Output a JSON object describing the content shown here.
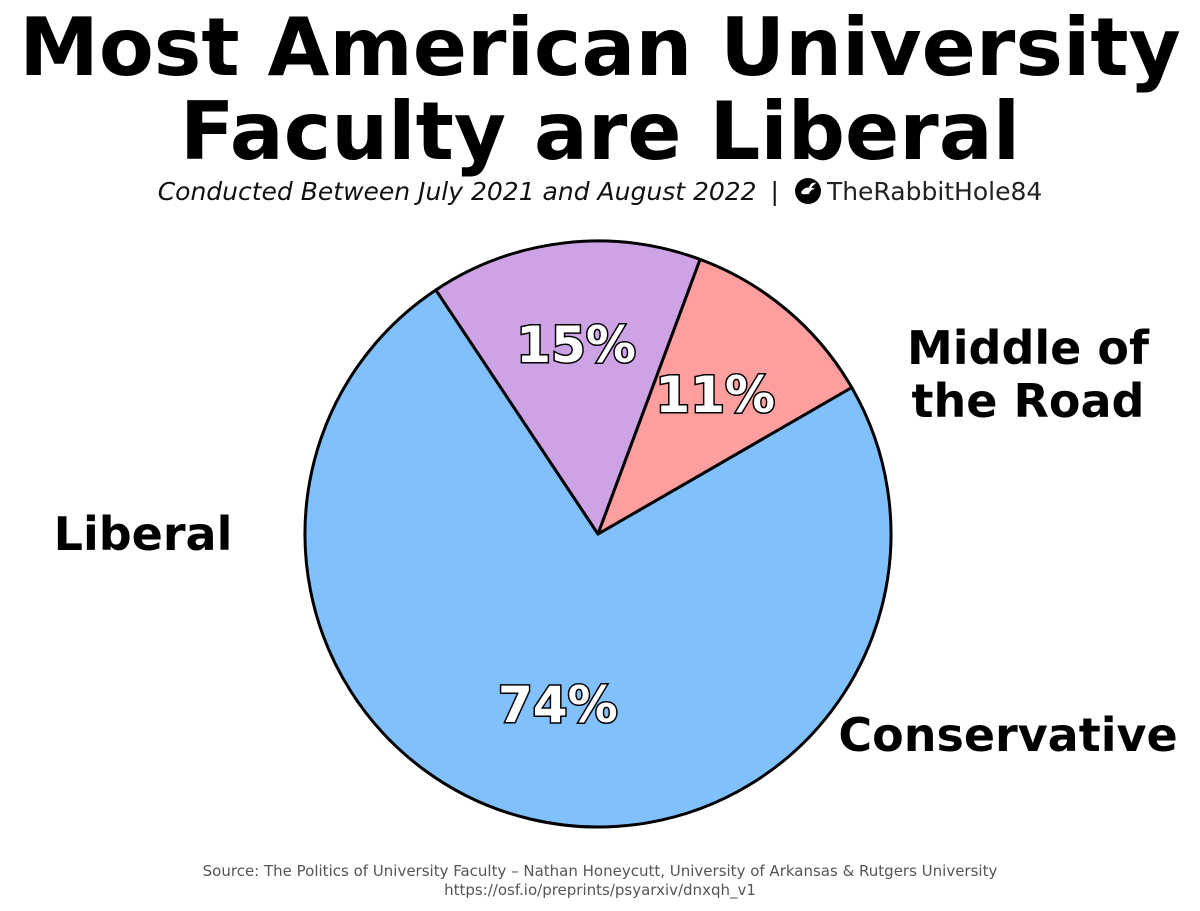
{
  "chart_data": {
    "type": "pie",
    "title": "Most American University Faculty are Liberal",
    "subtitle": "Conducted Between July 2021 and August 2022",
    "separator": "|",
    "credit": "TheRabbitHole84",
    "slices": [
      {
        "label": "Liberal",
        "value": 74,
        "value_label": "74%",
        "color": "#80c1fd"
      },
      {
        "label": "Middle of the Road",
        "value": 15,
        "value_label": "15%",
        "color": "#cda3e6"
      },
      {
        "label": "Conservative",
        "value": 11,
        "value_label": "11%",
        "color": "#fe9e9e"
      }
    ],
    "source_line1": "Source: The Politics of University Faculty – Nathan Honeycutt, University of Arkansas & Rutgers University",
    "source_line2": "https://osf.io/preprints/psyarxiv/dnxqh_v1"
  }
}
